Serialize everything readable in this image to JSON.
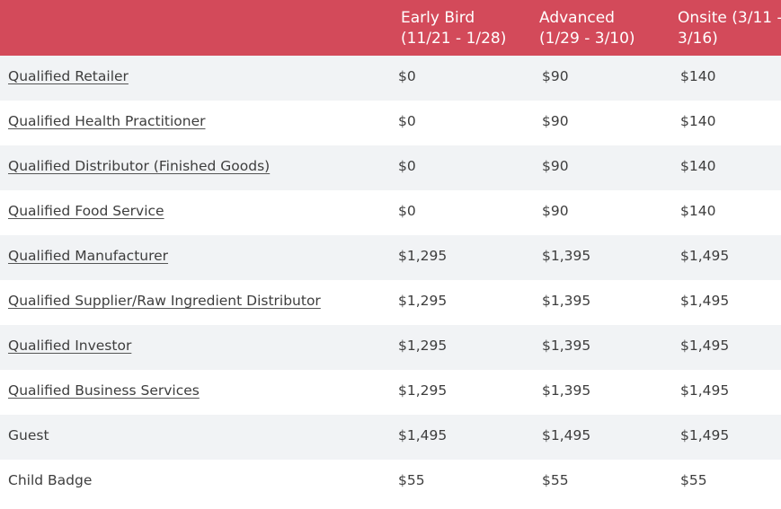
{
  "header": {
    "type": "",
    "early_bird": [
      "Early Bird",
      "(11/21 - 1/28)"
    ],
    "advanced": [
      "Advanced",
      "(1/29 - 3/10)"
    ],
    "onsite": [
      "Onsite (3/11 -",
      "3/16)"
    ]
  },
  "rows": [
    {
      "label": "Qualified Retailer",
      "link": true,
      "early": "$0",
      "advanced": "$90",
      "onsite": "$140"
    },
    {
      "label": "Qualified Health Practitioner",
      "link": true,
      "early": "$0",
      "advanced": "$90",
      "onsite": "$140"
    },
    {
      "label": "Qualified Distributor (Finished Goods)",
      "link": true,
      "early": "$0",
      "advanced": "$90",
      "onsite": "$140"
    },
    {
      "label": "Qualified Food Service",
      "link": true,
      "early": "$0",
      "advanced": "$90",
      "onsite": "$140"
    },
    {
      "label": "Qualified Manufacturer",
      "link": true,
      "early": "$1,295",
      "advanced": "$1,395",
      "onsite": "$1,495"
    },
    {
      "label": "Qualified Supplier/Raw Ingredient Distributor",
      "link": true,
      "early": "$1,295",
      "advanced": "$1,395",
      "onsite": "$1,495"
    },
    {
      "label": "Qualified Investor",
      "link": true,
      "early": "$1,295",
      "advanced": "$1,395",
      "onsite": "$1,495"
    },
    {
      "label": "Qualified Business Services",
      "link": true,
      "early": "$1,295",
      "advanced": "$1,395",
      "onsite": "$1,495"
    },
    {
      "label": "Guest",
      "link": false,
      "early": "$1,495",
      "advanced": "$1,495",
      "onsite": "$1,495"
    },
    {
      "label": "Child Badge",
      "link": false,
      "early": "$55",
      "advanced": "$55",
      "onsite": "$55"
    }
  ],
  "colors": {
    "header_background": "#d34a5a",
    "header_text": "#ffffff",
    "row_stripe": "#f1f3f5",
    "body_text": "#3d3d3d"
  }
}
